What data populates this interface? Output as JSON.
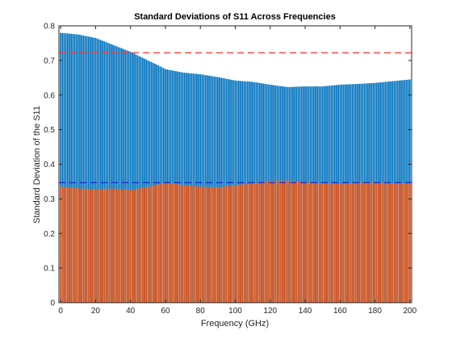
{
  "chart_data": {
    "type": "bar",
    "title": "Standard Deviations of S11 Across Frequencies",
    "xlabel": "Frequency (GHz)",
    "ylabel": "Standard Deviation of the S11",
    "xlim": [
      -1,
      201
    ],
    "ylim": [
      0,
      0.8
    ],
    "x_ticks": [
      0,
      20,
      40,
      60,
      80,
      100,
      120,
      140,
      160,
      180,
      200
    ],
    "y_ticks": [
      0,
      0.1,
      0.2,
      0.3,
      0.4,
      0.5,
      0.6,
      0.7,
      0.8
    ],
    "y_tick_labels": [
      "0",
      "0.1",
      "0.2",
      "0.3",
      "0.4",
      "0.5",
      "0.6",
      "0.7",
      "0.8"
    ],
    "grid": false,
    "x_step": 1,
    "series": [
      {
        "color": "#0072BD",
        "x_points": [
          0,
          10,
          20,
          30,
          40,
          50,
          55,
          60,
          70,
          80,
          90,
          100,
          110,
          120,
          130,
          140,
          150,
          160,
          170,
          180,
          190,
          200
        ],
        "values": [
          0.78,
          0.775,
          0.765,
          0.745,
          0.725,
          0.7,
          0.688,
          0.675,
          0.665,
          0.66,
          0.652,
          0.642,
          0.638,
          0.63,
          0.623,
          0.625,
          0.625,
          0.63,
          0.632,
          0.635,
          0.64,
          0.645
        ]
      },
      {
        "color": "#D95319",
        "x_points": [
          0,
          10,
          20,
          30,
          40,
          50,
          60,
          70,
          80,
          90,
          100,
          110,
          120,
          130,
          140,
          150,
          160,
          170,
          180,
          190,
          200
        ],
        "values": [
          0.335,
          0.33,
          0.328,
          0.33,
          0.325,
          0.335,
          0.347,
          0.34,
          0.335,
          0.333,
          0.34,
          0.345,
          0.352,
          0.353,
          0.348,
          0.345,
          0.343,
          0.347,
          0.347,
          0.345,
          0.345
        ]
      }
    ],
    "reference_lines": [
      {
        "y": 0.722,
        "color": "#FF3B3B",
        "style": "dashed"
      },
      {
        "y": 0.347,
        "color": "#1A2BD6",
        "style": "dashed"
      }
    ]
  }
}
